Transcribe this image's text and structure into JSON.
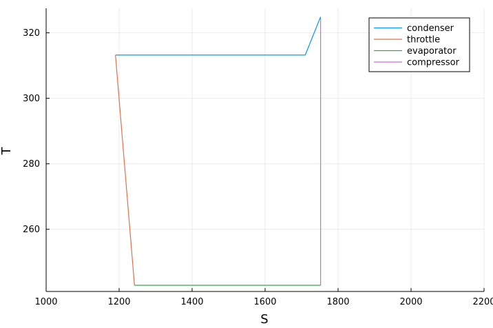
{
  "chart_data": {
    "type": "line",
    "title": "",
    "xlabel": "S",
    "ylabel": "T",
    "xlim": [
      1000,
      2200
    ],
    "ylim": [
      241,
      327.5
    ],
    "x_ticks": [
      1000,
      1200,
      1400,
      1600,
      1800,
      2000,
      2200
    ],
    "y_ticks": [
      260,
      280,
      300,
      320
    ],
    "grid": true,
    "legend_position": "top-right",
    "series": [
      {
        "name": "condenser",
        "color": "#009af9",
        "x": [
          1752,
          1710,
          1190
        ],
        "y": [
          324.9,
          313.2,
          313.2
        ]
      },
      {
        "name": "throttle",
        "color": "#e26f46",
        "x": [
          1190,
          1242
        ],
        "y": [
          313.2,
          242.9
        ]
      },
      {
        "name": "evaporator",
        "color": "#3da44d",
        "x": [
          1242,
          1752
        ],
        "y": [
          242.9,
          242.9
        ]
      },
      {
        "name": "compressor",
        "color": "#c271d2",
        "x": [
          1752,
          1752
        ],
        "y": [
          242.9,
          324.9
        ]
      }
    ]
  }
}
